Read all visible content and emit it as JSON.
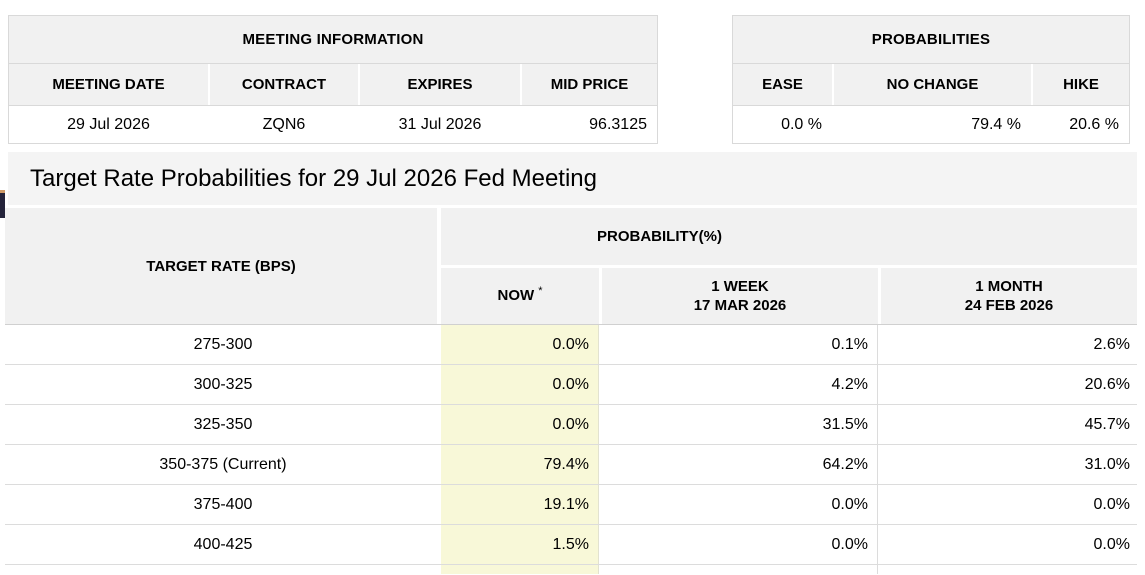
{
  "meeting_information": {
    "title": "MEETING INFORMATION",
    "columns": [
      "MEETING DATE",
      "CONTRACT",
      "EXPIRES",
      "MID PRICE"
    ],
    "row": {
      "meeting_date": "29 Jul 2026",
      "contract": "ZQN6",
      "expires": "31 Jul 2026",
      "mid_price": "96.3125"
    }
  },
  "probabilities": {
    "title": "PROBABILITIES",
    "columns": [
      "EASE",
      "NO CHANGE",
      "HIKE"
    ],
    "row": {
      "ease": "0.0 %",
      "no_change": "79.4 %",
      "hike": "20.6 %"
    }
  },
  "section_title": "Target Rate Probabilities for 29 Jul 2026 Fed Meeting",
  "rate_table": {
    "target_rate_header": "TARGET RATE (BPS)",
    "probability_header": "PROBABILITY(%)",
    "now_label": "NOW",
    "now_footnote_marker": "*",
    "week_label_line1": "1 WEEK",
    "week_label_line2": "17 MAR 2026",
    "month_label_line1": "1 MONTH",
    "month_label_line2": "24 FEB 2026",
    "rows": [
      {
        "target_rate": "275-300",
        "now": "0.0%",
        "week": "0.1%",
        "month": "2.6%"
      },
      {
        "target_rate": "300-325",
        "now": "0.0%",
        "week": "4.2%",
        "month": "20.6%"
      },
      {
        "target_rate": "325-350",
        "now": "0.0%",
        "week": "31.5%",
        "month": "45.7%"
      },
      {
        "target_rate": "350-375 (Current)",
        "now": "79.4%",
        "week": "64.2%",
        "month": "31.0%"
      },
      {
        "target_rate": "375-400",
        "now": "19.1%",
        "week": "0.0%",
        "month": "0.0%"
      },
      {
        "target_rate": "400-425",
        "now": "1.5%",
        "week": "0.0%",
        "month": "0.0%"
      }
    ]
  },
  "colors": {
    "now_column_highlight": "#f8f8d8",
    "header_background": "#f1f1f1",
    "title_bar_background": "#f4f4f4",
    "border": "#d9d9d9"
  }
}
